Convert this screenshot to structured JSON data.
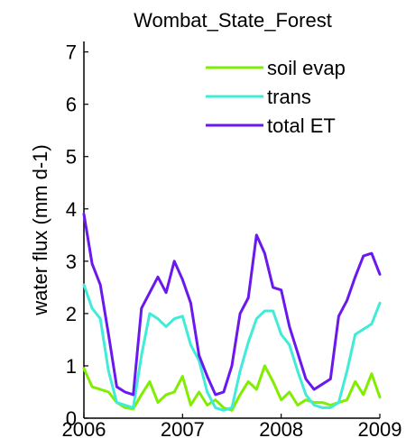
{
  "chart_data": {
    "type": "line",
    "title": "Wombat_State_Forest",
    "xlabel": "",
    "ylabel": "water flux (mm d-1)",
    "xlim": [
      2006,
      2009
    ],
    "ylim": [
      0,
      7.2
    ],
    "xticks": [
      2006,
      2007,
      2008,
      2009
    ],
    "yticks": [
      0,
      1,
      2,
      3,
      4,
      5,
      6,
      7
    ],
    "grid": false,
    "legend_position": "top-right",
    "series": [
      {
        "name": "soil evap",
        "color": "#80ee00",
        "x": [
          2006.0,
          2006.0833,
          2006.1667,
          2006.25,
          2006.3333,
          2006.4167,
          2006.5,
          2006.5833,
          2006.6667,
          2006.75,
          2006.8333,
          2006.9167,
          2007.0,
          2007.0833,
          2007.1667,
          2007.25,
          2007.3333,
          2007.4167,
          2007.5,
          2007.5833,
          2007.6667,
          2007.75,
          2007.8333,
          2007.9167,
          2008.0,
          2008.0833,
          2008.1667,
          2008.25,
          2008.3333,
          2008.4167,
          2008.5,
          2008.5833,
          2008.6667,
          2008.75,
          2008.8333,
          2008.9167,
          2009.0
        ],
        "values": [
          0.95,
          0.6,
          0.55,
          0.5,
          0.3,
          0.2,
          0.18,
          0.45,
          0.7,
          0.3,
          0.45,
          0.5,
          0.8,
          0.25,
          0.5,
          0.25,
          0.35,
          0.2,
          0.15,
          0.45,
          0.7,
          0.55,
          1.0,
          0.7,
          0.35,
          0.5,
          0.25,
          0.35,
          0.3,
          0.3,
          0.25,
          0.3,
          0.35,
          0.7,
          0.45,
          0.85,
          0.4
        ]
      },
      {
        "name": "trans",
        "color": "#40ecd8",
        "x": [
          2006.0,
          2006.0833,
          2006.1667,
          2006.25,
          2006.3333,
          2006.4167,
          2006.5,
          2006.5833,
          2006.6667,
          2006.75,
          2006.8333,
          2006.9167,
          2007.0,
          2007.0833,
          2007.1667,
          2007.25,
          2007.3333,
          2007.4167,
          2007.5,
          2007.5833,
          2007.6667,
          2007.75,
          2007.8333,
          2007.9167,
          2008.0,
          2008.0833,
          2008.1667,
          2008.25,
          2008.3333,
          2008.4167,
          2008.5,
          2008.5833,
          2008.6667,
          2008.75,
          2008.8333,
          2008.9167,
          2009.0
        ],
        "values": [
          2.55,
          2.1,
          1.9,
          0.9,
          0.3,
          0.25,
          0.2,
          1.2,
          2.0,
          1.9,
          1.75,
          1.9,
          1.95,
          1.4,
          1.1,
          0.5,
          0.2,
          0.15,
          0.2,
          0.9,
          1.45,
          1.9,
          2.05,
          2.05,
          1.6,
          1.4,
          0.9,
          0.45,
          0.25,
          0.2,
          0.2,
          0.3,
          0.9,
          1.6,
          1.7,
          1.8,
          2.2
        ]
      },
      {
        "name": "total ET",
        "color": "#6a18ee",
        "x": [
          2006.0,
          2006.0833,
          2006.1667,
          2006.25,
          2006.3333,
          2006.4167,
          2006.5,
          2006.5833,
          2006.6667,
          2006.75,
          2006.8333,
          2006.9167,
          2007.0,
          2007.0833,
          2007.1667,
          2007.25,
          2007.3333,
          2007.4167,
          2007.5,
          2007.5833,
          2007.6667,
          2007.75,
          2007.8333,
          2007.9167,
          2008.0,
          2008.0833,
          2008.1667,
          2008.25,
          2008.3333,
          2008.4167,
          2008.5,
          2008.5833,
          2008.6667,
          2008.75,
          2008.8333,
          2008.9167,
          2009.0
        ],
        "values": [
          3.9,
          2.95,
          2.55,
          1.6,
          0.6,
          0.5,
          0.45,
          2.1,
          2.4,
          2.7,
          2.4,
          3.0,
          2.65,
          2.2,
          1.2,
          0.8,
          0.45,
          0.5,
          1.0,
          2.0,
          2.3,
          3.5,
          3.15,
          2.5,
          2.45,
          1.75,
          1.25,
          0.75,
          0.55,
          0.65,
          0.75,
          1.95,
          2.25,
          2.7,
          3.1,
          3.15,
          2.75
        ]
      }
    ]
  }
}
